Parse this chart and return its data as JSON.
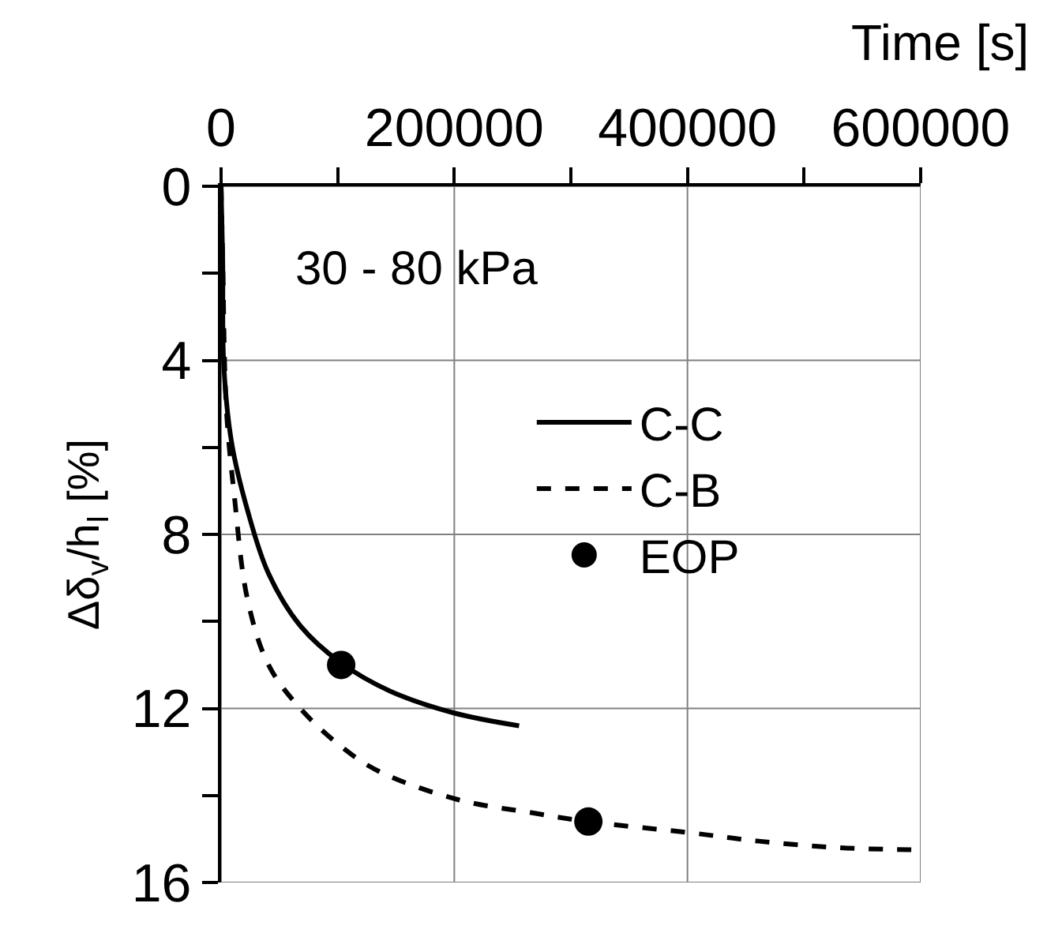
{
  "chart_data": {
    "type": "line",
    "xlabel": "Time [s]",
    "ylabel": "Δδ$_{v}$/h$_{I}$ [%]",
    "annotations": [
      "30 - 80 kPa"
    ],
    "xlim": [
      0,
      600000
    ],
    "xticks": [
      0,
      {
        "value": 100000,
        "label": null
      },
      200000,
      {
        "value": 300000,
        "label": null
      },
      400000,
      {
        "value": 500000,
        "label": null
      },
      600000
    ],
    "ylim": [
      16,
      0
    ],
    "yticks": [
      0,
      {
        "value": 2,
        "label": null
      },
      4,
      {
        "value": 6,
        "label": null
      },
      8,
      {
        "value": 10,
        "label": null
      },
      12,
      {
        "value": 14,
        "label": null
      },
      16
    ],
    "grid": true,
    "legend": "top right",
    "series": [
      {
        "name": "C-C",
        "color": "#000000",
        "line_style": "solid",
        "x": [
          0,
          1400,
          2300,
          9100,
          22700,
          40700,
          67900,
          102700,
          144800,
          199100,
          255600
        ],
        "values": [
          0,
          1.7,
          4.1,
          5.9,
          7.45,
          8.9,
          10.1,
          10.95,
          11.6,
          12.1,
          12.4
        ]
      },
      {
        "name": "C-B",
        "color": "#000000",
        "line_style": "dashed",
        "x": [
          0,
          1400,
          4500,
          11300,
          22700,
          40700,
          67900,
          104100,
          135700,
          203600,
          267000,
          314500,
          400000,
          461000,
          529000,
          600000
        ],
        "values": [
          0,
          1.7,
          5.1,
          7.1,
          9.5,
          11.0,
          12.0,
          12.9,
          13.45,
          14.1,
          14.4,
          14.6,
          14.85,
          15.05,
          15.2,
          15.25
        ]
      },
      {
        "name": "EOP",
        "type": "scatter",
        "marker": "circle",
        "color": "#000000",
        "x": [
          103000,
          315000
        ],
        "values": [
          11.0,
          14.6
        ]
      }
    ]
  }
}
